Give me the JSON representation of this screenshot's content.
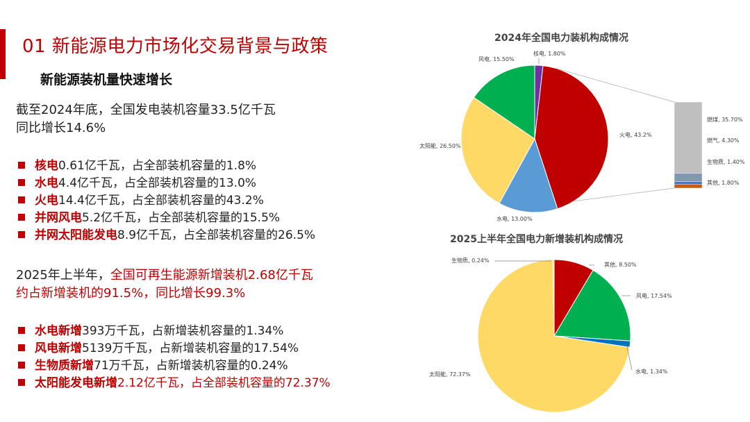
{
  "header": {
    "title": "01 新能源电力市场化交易背景与政策",
    "subtitle": "新能源装机量快速增长"
  },
  "intro": {
    "line1": "截至2024年底，全国发电装机容量33.5亿千瓦",
    "line2": "同比增长14.6%"
  },
  "list2024": [
    {
      "kw": "核电",
      "rest": "0.61亿千瓦，占全部装机容量的1.8%"
    },
    {
      "kw": "水电",
      "rest": "4.4亿千瓦，占全部装机容量的13.0%"
    },
    {
      "kw": "火电",
      "rest": "14.4亿千瓦，占全部装机容量的43.2%"
    },
    {
      "kw": "并网风电",
      "rest": "5.2亿千瓦，占全部装机容量的15.5%"
    },
    {
      "kw": "并网太阳能发电",
      "rest": "8.9亿千瓦，占全部装机容量的26.5%"
    }
  ],
  "h2025": {
    "line1_black": "2025年上半年，",
    "line1_red": "全国可再生能源新增装机2.68亿千瓦",
    "line2": "约占新增装机的91.5%，同比增长99.3%"
  },
  "list2025": [
    {
      "kw": "水电新增",
      "rest": "393万千瓦，占新增装机容量的1.34%"
    },
    {
      "kw": "风电新增",
      "rest": "5139万千瓦，占新增装机容量的17.54%"
    },
    {
      "kw": "生物质新增",
      "rest": "71万千瓦，占新增装机容量的0.24%"
    },
    {
      "kw": "太阳能发电新增",
      "rest": "2.12亿千瓦，占全部装机容量的72.37%"
    }
  ],
  "colors": {
    "accent": "#c00000",
    "nuclear": "#7030a0",
    "thermal": "#c00000",
    "hydro": "#5b9bd5",
    "solar": "#ffd966",
    "wind": "#00b050",
    "biomass": "#a9d18e",
    "hydro2025": "#0070c0",
    "other2025": "#c00000",
    "coal": "#bfbfbf",
    "gas": "#8497b0",
    "bio2024": "#4472c4",
    "other2024": "#c55a11"
  },
  "chart_data": [
    {
      "type": "pie",
      "title": "2024年全国电力装机构成情况",
      "slices": [
        {
          "name": "核电",
          "value": 1.8,
          "label": "核电, 1.80%",
          "color": "#7030a0"
        },
        {
          "name": "火电",
          "value": 43.2,
          "label": "火电, 43.2%",
          "color": "#c00000"
        },
        {
          "name": "水电",
          "value": 13.0,
          "label": "水电, 13.00%",
          "color": "#5b9bd5"
        },
        {
          "name": "太阳能",
          "value": 26.5,
          "label": "太阳能, 26.50%",
          "color": "#ffd966"
        },
        {
          "name": "风电",
          "value": 15.5,
          "label": "风电, 15.50%",
          "color": "#00b050"
        }
      ],
      "breakdown_of": "火电",
      "breakdown": [
        {
          "name": "燃煤",
          "value": 35.7,
          "label": "燃煤, 35.70%",
          "color": "#bfbfbf"
        },
        {
          "name": "燃气",
          "value": 4.3,
          "label": "燃气, 4.30%",
          "color": "#8497b0"
        },
        {
          "name": "生物质",
          "value": 1.4,
          "label": "生物质, 1.40%",
          "color": "#4472c4"
        },
        {
          "name": "其他",
          "value": 1.8,
          "label": "其他, 1.80%",
          "color": "#c55a11"
        }
      ]
    },
    {
      "type": "pie",
      "title": "2025上半年全国电力新增装机构成情况",
      "slices": [
        {
          "name": "其他",
          "value": 8.5,
          "label": "其他, 8.50%",
          "color": "#c00000"
        },
        {
          "name": "风电",
          "value": 17.54,
          "label": "风电, 17.54%",
          "color": "#00b050"
        },
        {
          "name": "水电",
          "value": 1.34,
          "label": "水电, 1.34%",
          "color": "#0070c0"
        },
        {
          "name": "太阳能",
          "value": 72.37,
          "label": "太阳能, 72.37%",
          "color": "#ffd966"
        },
        {
          "name": "生物质",
          "value": 0.24,
          "label": "生物质, 0.24%",
          "color": "#a9d18e"
        }
      ]
    }
  ]
}
